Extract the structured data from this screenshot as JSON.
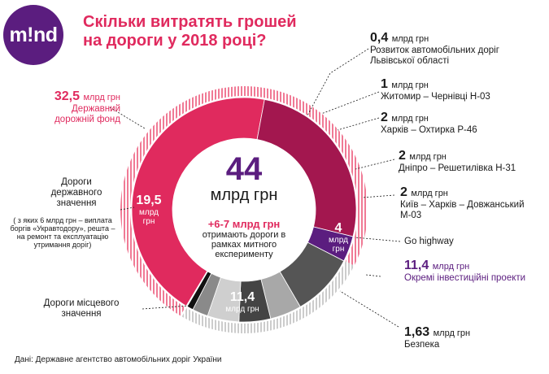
{
  "logo": {
    "text": "m!nd"
  },
  "title": {
    "line1": "Скільки витратять грошей",
    "line2": "на дороги у 2018 році?"
  },
  "source": "Дані: Державне агентство автомобільних доріг України",
  "colors": {
    "pink": "#e02a5e",
    "pink_light": "#f07a95",
    "crimson": "#a3174f",
    "purple": "#5b1d7f",
    "gray_dark": "#555555",
    "black": "#111111"
  },
  "center": {
    "total": "44",
    "unit": "млрд грн",
    "extra_amount": "+6-7 млрд грн",
    "extra_text": "отримають дороги в рамках митного експерименту"
  },
  "left_labels": {
    "fund_amount": "32,5",
    "fund_unit": "млрд грн",
    "fund_name": "Державний дорожній фонд",
    "state_roads": "Дороги державного значення",
    "state_roads_note": "( з яких 6 млрд грн – виплата боргів «Укравтодору», решта – на ремонт та експлуатацію утримання доріг)",
    "local_roads": "Дороги місцевого значення"
  },
  "chart_data": {
    "type": "pie",
    "title": "Скільки витратять грошей на дороги у 2018 році?",
    "total": 44,
    "unit": "млрд грн",
    "inner_ring": [
      {
        "name": "Дороги державного значення",
        "value": 19.5,
        "label": "19,5",
        "unit": "млрд грн",
        "color": "#e02a5e"
      },
      {
        "name": "Дороги місцевого значення",
        "value": 11.4,
        "label": "11,4",
        "unit": "млрд грн",
        "color": "#a3174f"
      },
      {
        "name": "Безпека",
        "value": 1.63,
        "label": "1,63",
        "unit": "млрд грн",
        "color": "#5b1d7f"
      },
      {
        "name": "Go highway",
        "value": 4,
        "label": "4",
        "unit": "млрд грн",
        "color": "#555555"
      },
      {
        "name": "Київ – Харків – Довжанський М-03",
        "value": 2,
        "label": "2",
        "unit": "млрд грн",
        "color": "#a8a8a8"
      },
      {
        "name": "Дніпро – Решетилівка Н-31",
        "value": 2,
        "label": "2",
        "unit": "млрд грн",
        "color": "#444444"
      },
      {
        "name": "Харків – Охтирка Р-46",
        "value": 2,
        "label": "2",
        "unit": "млрд грн",
        "color": "#cfcfcf"
      },
      {
        "name": "Житомир – Чернівці Н-03",
        "value": 1,
        "label": "1",
        "unit": "млрд грн",
        "color": "#8a8a8a"
      },
      {
        "name": "Розвиток автомобільних доріг Львівської області",
        "value": 0.4,
        "label": "0,4",
        "unit": "млрд грн",
        "color": "#111111"
      }
    ],
    "outer_ring": [
      {
        "name": "Державний дорожній фонд",
        "value": 32.5,
        "label": "32,5",
        "unit": "млрд грн",
        "color": "#f07a95"
      },
      {
        "name": "Окремі інвестиційні проекти",
        "value": 11.4,
        "label": "11,4",
        "unit": "млрд грн",
        "color": "#cccccc"
      }
    ]
  },
  "right_labels": [
    {
      "amount": "0,4",
      "unit": "млрд грн",
      "text": "Розвиток автомобільних доріг Львівської області"
    },
    {
      "amount": "1",
      "unit": "млрд грн",
      "text": "Житомир – Чернівці Н-03"
    },
    {
      "amount": "2",
      "unit": "млрд грн",
      "text": "Харків – Охтирка Р-46"
    },
    {
      "amount": "2",
      "unit": "млрд грн",
      "text": "Дніпро – Решетилівка Н-31"
    },
    {
      "amount": "2",
      "unit": "млрд грн",
      "text": "Київ – Харків – Довжанський М-03"
    },
    {
      "text": "Go highway"
    },
    {
      "amount": "11,4",
      "unit": "млрд грн",
      "text": "Окремі інвестиційні проекти"
    },
    {
      "amount": "1,63",
      "unit": "млрд грн",
      "text": "Безпека"
    }
  ]
}
